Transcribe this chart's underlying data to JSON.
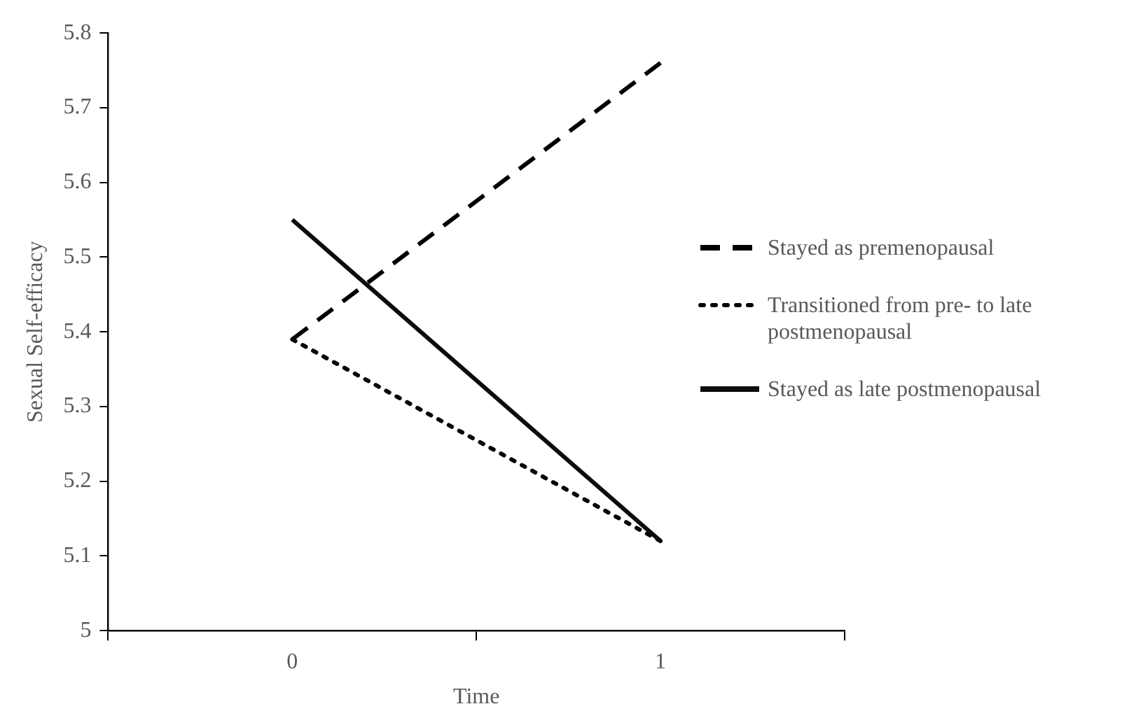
{
  "chart_data": {
    "type": "line",
    "xlabel": "Time",
    "ylabel": "Sexual Self-efficacy",
    "x": [
      0,
      1
    ],
    "xlim": [
      -0.5,
      1.5
    ],
    "xticks": [
      {
        "value": -0.5,
        "label": null
      },
      0,
      {
        "value": 0.5,
        "label": null
      },
      1,
      {
        "value": 1.5,
        "label": null
      }
    ],
    "series": [
      {
        "name": "Stayed as premenopausal",
        "color": "#000000",
        "values": [
          5.39,
          5.76
        ],
        "line_style": "dashed"
      },
      {
        "name": "Transitioned from pre- to late postmenopausal",
        "color": "#060606",
        "values": [
          5.39,
          5.12
        ],
        "line_style": "dotted"
      },
      {
        "name": "Stayed as late postmenopausal",
        "color": "#0c0c0c",
        "values": [
          5.55,
          5.12
        ],
        "line_style": "solid"
      }
    ],
    "ylim": [
      5,
      5.8
    ],
    "yticks": [
      5,
      5.1,
      5.2,
      5.3,
      5.4,
      5.5,
      5.6,
      5.7,
      5.8
    ],
    "grid": false,
    "legend": "right",
    "marker": "none"
  }
}
